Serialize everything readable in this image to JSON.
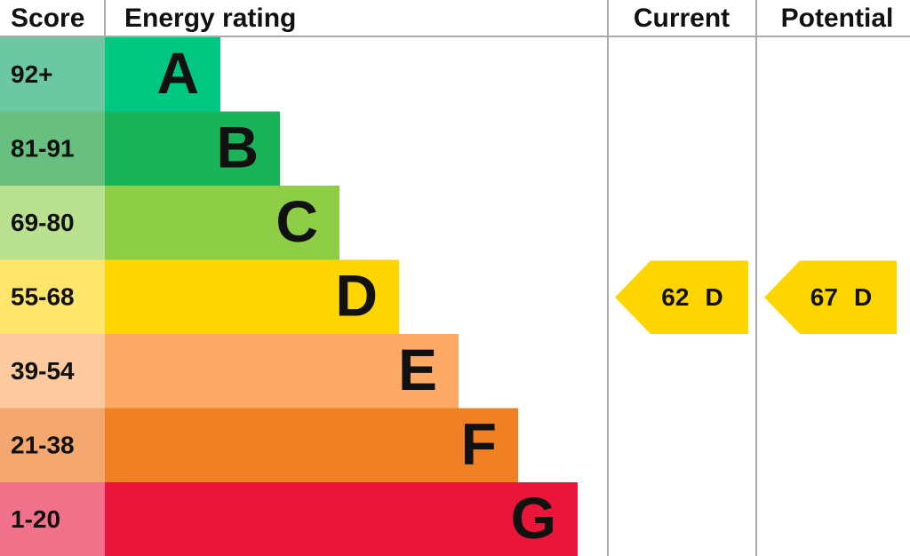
{
  "header": {
    "score": "Score",
    "rating": "Energy rating",
    "current": "Current",
    "potential": "Potential"
  },
  "bands": [
    {
      "score": "92+",
      "letter": "A",
      "color": "#00c781",
      "score_color": "#6bc8a3"
    },
    {
      "score": "81-91",
      "letter": "B",
      "color": "#19b459",
      "score_color": "#68bf80"
    },
    {
      "score": "69-80",
      "letter": "C",
      "color": "#8dce46",
      "score_color": "#b8e08e"
    },
    {
      "score": "55-68",
      "letter": "D",
      "color": "#ffd500",
      "score_color": "#ffe56b"
    },
    {
      "score": "39-54",
      "letter": "E",
      "color": "#fcaa65",
      "score_color": "#fdcaa0"
    },
    {
      "score": "21-38",
      "letter": "F",
      "color": "#ef8023",
      "score_color": "#f4a870"
    },
    {
      "score": "1-20",
      "letter": "G",
      "color": "#e9153b",
      "score_color": "#f07189"
    }
  ],
  "current": {
    "value": 62,
    "letter": "D"
  },
  "potential": {
    "value": 67,
    "letter": "D"
  }
}
